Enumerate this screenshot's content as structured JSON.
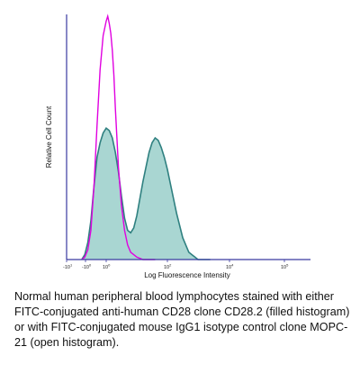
{
  "chart_data": {
    "type": "area",
    "xlabel": "Log Fluorescence Intensity",
    "ylabel": "Relative Cell Count",
    "x_scale": "log (biexponential)",
    "x_ticks": [
      {
        "base": "-10",
        "exp": "1"
      },
      {
        "base": "-10",
        "exp": "0"
      },
      {
        "base": "10",
        "exp": "0"
      },
      {
        "base": "10",
        "exp": "2"
      },
      {
        "base": "10",
        "exp": "4"
      },
      {
        "base": "10",
        "exp": "5"
      }
    ],
    "grid": false,
    "series": [
      {
        "style": "filled",
        "color": "#2f8080",
        "fill": "#a9d6d2",
        "x_log": [
          -0.8,
          -0.7,
          -0.6,
          -0.5,
          -0.4,
          -0.3,
          -0.2,
          -0.1,
          0.0,
          0.1,
          0.2,
          0.3,
          0.4,
          0.5,
          0.6,
          0.7,
          0.8,
          0.9,
          1.0,
          1.1,
          1.2,
          1.3,
          1.4,
          1.5,
          1.6,
          1.7,
          1.8,
          1.9,
          2.0,
          2.1,
          2.2,
          2.3,
          2.4,
          2.5,
          2.6,
          2.7,
          2.8,
          2.9,
          3.0,
          3.1,
          3.2,
          3.3,
          3.4
        ],
        "y_rel": [
          0.0,
          0.02,
          0.07,
          0.16,
          0.3,
          0.42,
          0.48,
          0.52,
          0.54,
          0.53,
          0.5,
          0.44,
          0.36,
          0.26,
          0.17,
          0.12,
          0.11,
          0.13,
          0.18,
          0.25,
          0.32,
          0.38,
          0.44,
          0.48,
          0.5,
          0.49,
          0.46,
          0.42,
          0.37,
          0.31,
          0.25,
          0.19,
          0.14,
          0.09,
          0.06,
          0.03,
          0.02,
          0.01,
          0.0,
          0.0,
          0.0,
          0.0,
          0.0
        ]
      },
      {
        "style": "open",
        "color": "#e000e0",
        "x_log": [
          -0.8,
          -0.7,
          -0.6,
          -0.5,
          -0.4,
          -0.3,
          -0.2,
          -0.1,
          0.0,
          0.05,
          0.1,
          0.15,
          0.2,
          0.25,
          0.3,
          0.35,
          0.4,
          0.5,
          0.6,
          0.7,
          0.8,
          0.9,
          1.0,
          1.2,
          1.4,
          1.6
        ],
        "y_rel": [
          0.0,
          0.01,
          0.04,
          0.12,
          0.3,
          0.55,
          0.78,
          0.92,
          0.98,
          1.0,
          0.97,
          0.93,
          0.86,
          0.76,
          0.62,
          0.5,
          0.38,
          0.22,
          0.12,
          0.06,
          0.03,
          0.02,
          0.01,
          0.0,
          0.0,
          0.0
        ]
      }
    ]
  },
  "caption": "Normal human peripheral blood lymphocytes stained with either FITC-conjugated anti-human CD28 clone CD28.2 (filled histogram) or with FITC-conjugated mouse IgG1 isotype control clone MOPC-21 (open histogram)."
}
